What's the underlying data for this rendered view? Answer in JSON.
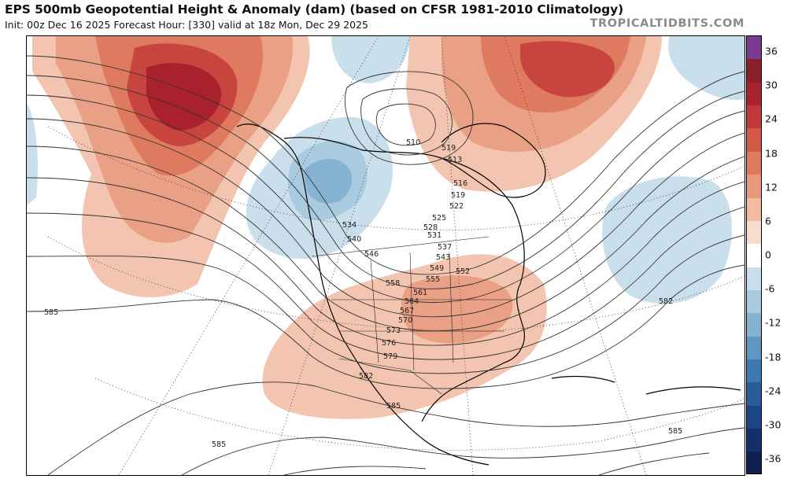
{
  "header": {
    "title": "EPS 500mb Geopotential Height & Anomaly (dam) (based on CFSR 1981-2010 Climatology)",
    "subtitle": "Init: 00z Dec 16 2025   Forecast Hour: [330]   valid at 18z Mon, Dec 29 2025",
    "brand": "TROPICALTIDBITS.COM"
  },
  "colorbar": {
    "labels": [
      "36",
      "30",
      "24",
      "18",
      "12",
      "6",
      "0",
      "-6",
      "-12",
      "-18",
      "-24",
      "-30",
      "-36"
    ],
    "colors": [
      "#7a3c8e",
      "#8b1e2b",
      "#a8232e",
      "#c2383a",
      "#d35a48",
      "#e07a5e",
      "#ea9a7c",
      "#f2bba2",
      "#f8dccc",
      "#ffffff",
      "#c9dfec",
      "#a9cbe0",
      "#86b3d3",
      "#5f97c3",
      "#3d79b0",
      "#275e9a",
      "#1b4585",
      "#14306a",
      "#0e2050"
    ]
  },
  "contour_labels": [
    {
      "text": "510"
    },
    {
      "text": "513"
    },
    {
      "text": "516"
    },
    {
      "text": "519"
    },
    {
      "text": "522"
    },
    {
      "text": "525"
    },
    {
      "text": "528"
    },
    {
      "text": "531"
    },
    {
      "text": "534"
    },
    {
      "text": "537"
    },
    {
      "text": "540"
    },
    {
      "text": "543"
    },
    {
      "text": "546"
    },
    {
      "text": "549"
    },
    {
      "text": "552"
    },
    {
      "text": "555"
    },
    {
      "text": "558"
    },
    {
      "text": "561"
    },
    {
      "text": "564"
    },
    {
      "text": "567"
    },
    {
      "text": "570"
    },
    {
      "text": "573"
    },
    {
      "text": "576"
    },
    {
      "text": "579"
    },
    {
      "text": "582"
    },
    {
      "text": "582"
    },
    {
      "text": "585"
    },
    {
      "text": "585"
    },
    {
      "text": "585"
    },
    {
      "text": "585"
    },
    {
      "text": "519"
    }
  ]
}
